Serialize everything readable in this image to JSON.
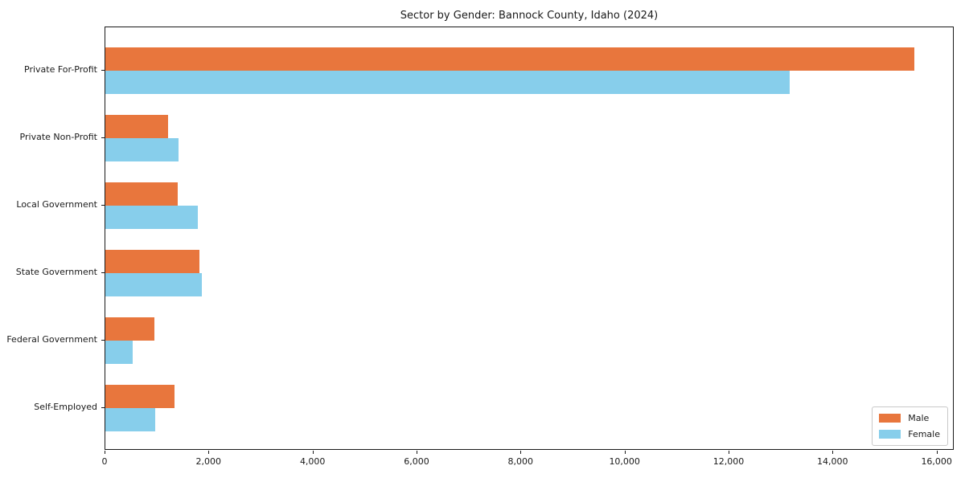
{
  "chart_data": {
    "type": "bar",
    "orientation": "horizontal",
    "title": "Sector by Gender: Bannock County, Idaho (2024)",
    "categories": [
      "Private For-Profit",
      "Private Non-Profit",
      "Local Government",
      "State Government",
      "Federal Government",
      "Self-Employed"
    ],
    "series": [
      {
        "name": "Male",
        "color": "#e8763d",
        "values": [
          15560,
          1200,
          1390,
          1810,
          940,
          1330
        ]
      },
      {
        "name": "Female",
        "color": "#87ceeb",
        "values": [
          13160,
          1400,
          1780,
          1860,
          530,
          960
        ]
      }
    ],
    "xlabel": "",
    "ylabel": "",
    "xlim": [
      0,
      16330
    ],
    "x_ticks": [
      0,
      2000,
      4000,
      6000,
      8000,
      10000,
      12000,
      14000,
      16000
    ],
    "x_tick_labels": [
      "0",
      "2,000",
      "4,000",
      "6,000",
      "8,000",
      "10,000",
      "12,000",
      "14,000",
      "16,000"
    ],
    "legend_position": "lower right",
    "grid": false,
    "background_color": "#ffffff",
    "axis_color": "#1a1a1a"
  }
}
